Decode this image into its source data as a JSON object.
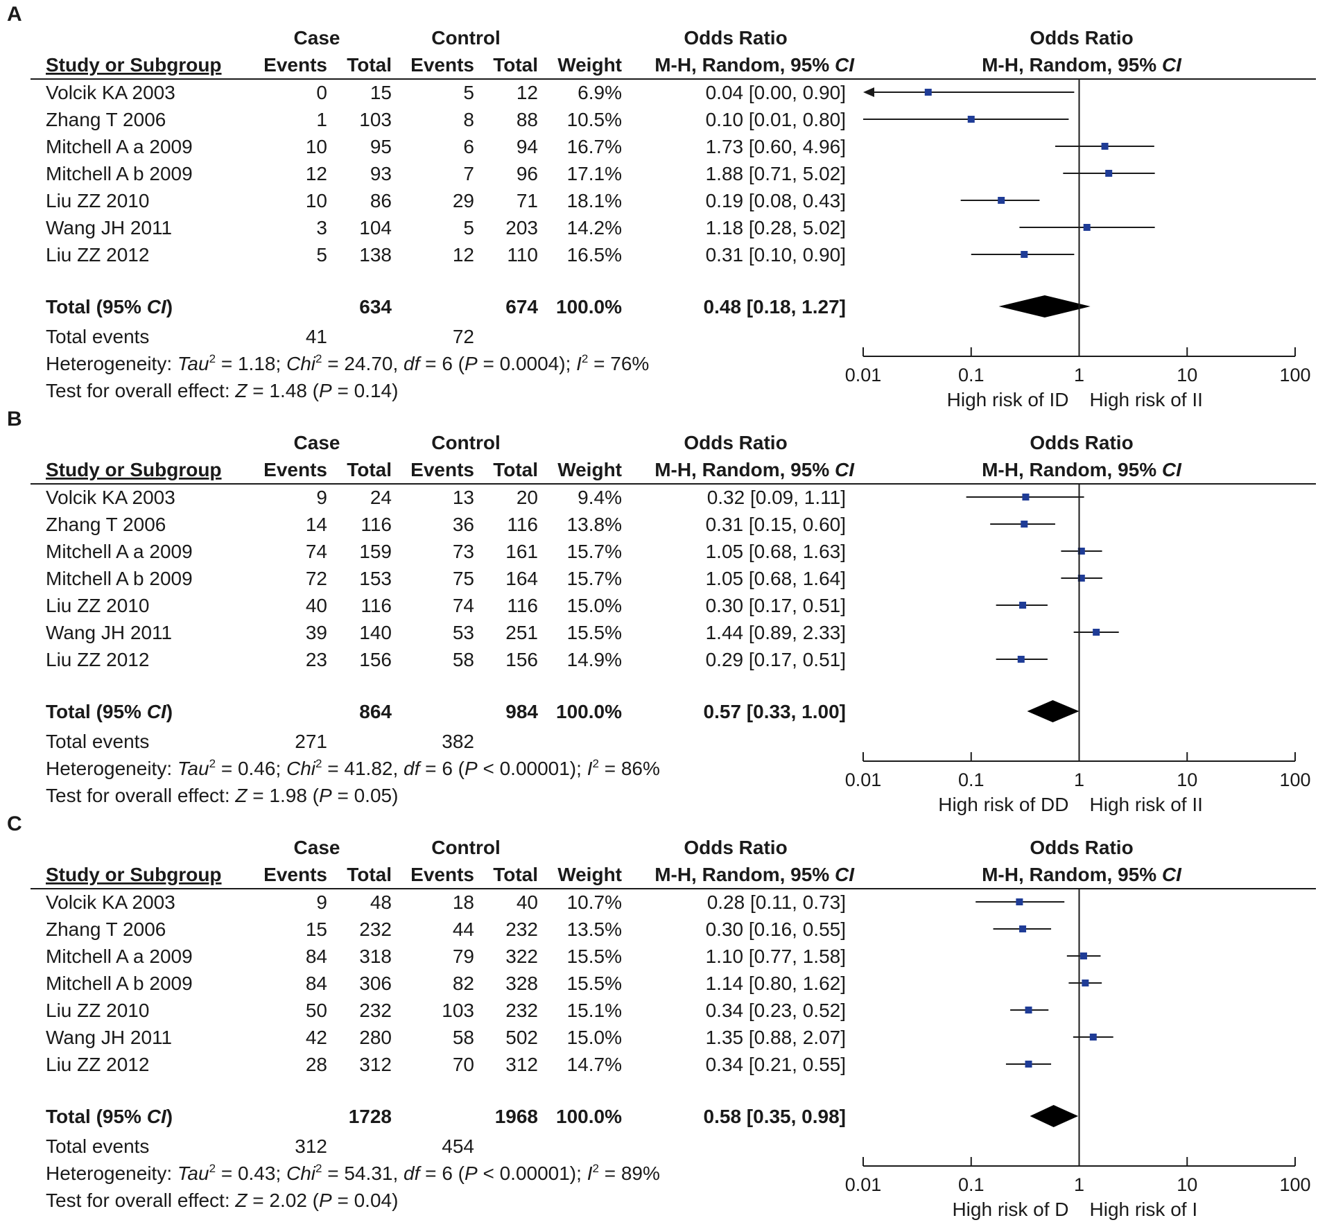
{
  "colors": {
    "marker": "#1f3c96",
    "line": "#1a1a1a",
    "diamond": "#000000"
  },
  "headers": {
    "case": "Case",
    "control": "Control",
    "odds_ratio": "Odds Ratio",
    "study": "Study or Subgroup",
    "events": "Events",
    "total": "Total",
    "weight": "Weight",
    "method_prefix": "M-H, Random, 95% ",
    "ci": "CI"
  },
  "chart_data": [
    {
      "type": "forest",
      "panel": "A",
      "axis": {
        "scale": "log",
        "ticks": [
          "0.01",
          "0.1",
          "1",
          "10",
          "100"
        ],
        "range": [
          0.01,
          100
        ],
        "left_label": "High risk of ID",
        "right_label": "High risk of II"
      },
      "studies": [
        {
          "name": "Volcik KA 2003",
          "case_events": "0",
          "case_total": "15",
          "ctrl_events": "5",
          "ctrl_total": "12",
          "weight": "6.9%",
          "or_text": "0.04 [0.00, 0.90]",
          "or": 0.04,
          "lo": 0.0,
          "hi": 0.9,
          "left_arrow": true
        },
        {
          "name": "Zhang T 2006",
          "case_events": "1",
          "case_total": "103",
          "ctrl_events": "8",
          "ctrl_total": "88",
          "weight": "10.5%",
          "or_text": "0.10 [0.01, 0.80]",
          "or": 0.1,
          "lo": 0.01,
          "hi": 0.8
        },
        {
          "name": "Mitchell A a 2009",
          "case_events": "10",
          "case_total": "95",
          "ctrl_events": "6",
          "ctrl_total": "94",
          "weight": "16.7%",
          "or_text": "1.73 [0.60, 4.96]",
          "or": 1.73,
          "lo": 0.6,
          "hi": 4.96
        },
        {
          "name": "Mitchell A b 2009",
          "case_events": "12",
          "case_total": "93",
          "ctrl_events": "7",
          "ctrl_total": "96",
          "weight": "17.1%",
          "or_text": "1.88 [0.71, 5.02]",
          "or": 1.88,
          "lo": 0.71,
          "hi": 5.02
        },
        {
          "name": "Liu ZZ 2010",
          "case_events": "10",
          "case_total": "86",
          "ctrl_events": "29",
          "ctrl_total": "71",
          "weight": "18.1%",
          "or_text": "0.19 [0.08, 0.43]",
          "or": 0.19,
          "lo": 0.08,
          "hi": 0.43
        },
        {
          "name": "Wang JH 2011",
          "case_events": "3",
          "case_total": "104",
          "ctrl_events": "5",
          "ctrl_total": "203",
          "weight": "14.2%",
          "or_text": "1.18 [0.28, 5.02]",
          "or": 1.18,
          "lo": 0.28,
          "hi": 5.02
        },
        {
          "name": "Liu ZZ 2012",
          "case_events": "5",
          "case_total": "138",
          "ctrl_events": "12",
          "ctrl_total": "110",
          "weight": "16.5%",
          "or_text": "0.31 [0.10, 0.90]",
          "or": 0.31,
          "lo": 0.1,
          "hi": 0.9
        }
      ],
      "total": {
        "label": "Total (95% ",
        "label_ci": "CI",
        "label_close": ")",
        "case_total": "634",
        "ctrl_total": "674",
        "weight": "100.0%",
        "or_text": "0.48 [0.18, 1.27]",
        "or": 0.48,
        "lo": 0.18,
        "hi": 1.27
      },
      "total_events": {
        "label": "Total events",
        "case": "41",
        "ctrl": "72"
      },
      "heterogeneity": {
        "label": "Heterogeneity: ",
        "tau_label": "Tau",
        "tau_val": " = 1.18; ",
        "chi_label": "Chi",
        "chi_val": " = 24.70, ",
        "df_label": "df",
        "df_val": " = 6 (",
        "p_label": "P",
        "p_val": " = 0.0004); ",
        "i_label": "I",
        "i_val": " = 76%"
      },
      "overall": {
        "label": "Test for overall effect: ",
        "z_label": "Z",
        "z_val": " = 1.48 (",
        "p_label": "P",
        "p_val": " = 0.14)"
      }
    },
    {
      "type": "forest",
      "panel": "B",
      "axis": {
        "scale": "log",
        "ticks": [
          "0.01",
          "0.1",
          "1",
          "10",
          "100"
        ],
        "range": [
          0.01,
          100
        ],
        "left_label": "High risk of DD",
        "right_label": "High risk of II"
      },
      "studies": [
        {
          "name": "Volcik KA 2003",
          "case_events": "9",
          "case_total": "24",
          "ctrl_events": "13",
          "ctrl_total": "20",
          "weight": "9.4%",
          "or_text": "0.32 [0.09, 1.11]",
          "or": 0.32,
          "lo": 0.09,
          "hi": 1.11
        },
        {
          "name": "Zhang T 2006",
          "case_events": "14",
          "case_total": "116",
          "ctrl_events": "36",
          "ctrl_total": "116",
          "weight": "13.8%",
          "or_text": "0.31 [0.15, 0.60]",
          "or": 0.31,
          "lo": 0.15,
          "hi": 0.6
        },
        {
          "name": "Mitchell A a 2009",
          "case_events": "74",
          "case_total": "159",
          "ctrl_events": "73",
          "ctrl_total": "161",
          "weight": "15.7%",
          "or_text": "1.05 [0.68, 1.63]",
          "or": 1.05,
          "lo": 0.68,
          "hi": 1.63
        },
        {
          "name": "Mitchell A b 2009",
          "case_events": "72",
          "case_total": "153",
          "ctrl_events": "75",
          "ctrl_total": "164",
          "weight": "15.7%",
          "or_text": "1.05 [0.68, 1.64]",
          "or": 1.05,
          "lo": 0.68,
          "hi": 1.64
        },
        {
          "name": "Liu ZZ 2010",
          "case_events": "40",
          "case_total": "116",
          "ctrl_events": "74",
          "ctrl_total": "116",
          "weight": "15.0%",
          "or_text": "0.30 [0.17, 0.51]",
          "or": 0.3,
          "lo": 0.17,
          "hi": 0.51
        },
        {
          "name": "Wang JH 2011",
          "case_events": "39",
          "case_total": "140",
          "ctrl_events": "53",
          "ctrl_total": "251",
          "weight": "15.5%",
          "or_text": "1.44 [0.89, 2.33]",
          "or": 1.44,
          "lo": 0.89,
          "hi": 2.33
        },
        {
          "name": "Liu ZZ 2012",
          "case_events": "23",
          "case_total": "156",
          "ctrl_events": "58",
          "ctrl_total": "156",
          "weight": "14.9%",
          "or_text": "0.29 [0.17, 0.51]",
          "or": 0.29,
          "lo": 0.17,
          "hi": 0.51
        }
      ],
      "total": {
        "label": "Total (95% ",
        "label_ci": "CI",
        "label_close": ")",
        "case_total": "864",
        "ctrl_total": "984",
        "weight": "100.0%",
        "or_text": "0.57 [0.33, 1.00]",
        "or": 0.57,
        "lo": 0.33,
        "hi": 1.0
      },
      "total_events": {
        "label": "Total events",
        "case": "271",
        "ctrl": "382"
      },
      "heterogeneity": {
        "label": "Heterogeneity: ",
        "tau_label": "Tau",
        "tau_val": " = 0.46; ",
        "chi_label": "Chi",
        "chi_val": " = 41.82, ",
        "df_label": "df",
        "df_val": " = 6 (",
        "p_label": "P",
        "p_val": " < 0.00001); ",
        "i_label": "I",
        "i_val": " = 86%"
      },
      "overall": {
        "label": "Test for overall effect: ",
        "z_label": "Z",
        "z_val": " = 1.98 (",
        "p_label": "P",
        "p_val": " = 0.05)"
      }
    },
    {
      "type": "forest",
      "panel": "C",
      "axis": {
        "scale": "log",
        "ticks": [
          "0.01",
          "0.1",
          "1",
          "10",
          "100"
        ],
        "range": [
          0.01,
          100
        ],
        "left_label": "High risk of D",
        "right_label": "High risk of I"
      },
      "studies": [
        {
          "name": "Volcik KA 2003",
          "case_events": "9",
          "case_total": "48",
          "ctrl_events": "18",
          "ctrl_total": "40",
          "weight": "10.7%",
          "or_text": "0.28 [0.11, 0.73]",
          "or": 0.28,
          "lo": 0.11,
          "hi": 0.73
        },
        {
          "name": "Zhang T 2006",
          "case_events": "15",
          "case_total": "232",
          "ctrl_events": "44",
          "ctrl_total": "232",
          "weight": "13.5%",
          "or_text": "0.30 [0.16, 0.55]",
          "or": 0.3,
          "lo": 0.16,
          "hi": 0.55
        },
        {
          "name": "Mitchell A a 2009",
          "case_events": "84",
          "case_total": "318",
          "ctrl_events": "79",
          "ctrl_total": "322",
          "weight": "15.5%",
          "or_text": "1.10 [0.77, 1.58]",
          "or": 1.1,
          "lo": 0.77,
          "hi": 1.58
        },
        {
          "name": "Mitchell A b 2009",
          "case_events": "84",
          "case_total": "306",
          "ctrl_events": "82",
          "ctrl_total": "328",
          "weight": "15.5%",
          "or_text": "1.14 [0.80, 1.62]",
          "or": 1.14,
          "lo": 0.8,
          "hi": 1.62
        },
        {
          "name": "Liu ZZ 2010",
          "case_events": "50",
          "case_total": "232",
          "ctrl_events": "103",
          "ctrl_total": "232",
          "weight": "15.1%",
          "or_text": "0.34 [0.23, 0.52]",
          "or": 0.34,
          "lo": 0.23,
          "hi": 0.52
        },
        {
          "name": "Wang JH 2011",
          "case_events": "42",
          "case_total": "280",
          "ctrl_events": "58",
          "ctrl_total": "502",
          "weight": "15.0%",
          "or_text": "1.35 [0.88, 2.07]",
          "or": 1.35,
          "lo": 0.88,
          "hi": 2.07
        },
        {
          "name": "Liu ZZ 2012",
          "case_events": "28",
          "case_total": "312",
          "ctrl_events": "70",
          "ctrl_total": "312",
          "weight": "14.7%",
          "or_text": "0.34 [0.21, 0.55]",
          "or": 0.34,
          "lo": 0.21,
          "hi": 0.55
        }
      ],
      "total": {
        "label": "Total (95% ",
        "label_ci": "CI",
        "label_close": ")",
        "case_total": "1728",
        "ctrl_total": "1968",
        "weight": "100.0%",
        "or_text": "0.58 [0.35, 0.98]",
        "or": 0.58,
        "lo": 0.35,
        "hi": 0.98
      },
      "total_events": {
        "label": "Total events",
        "case": "312",
        "ctrl": "454"
      },
      "heterogeneity": {
        "label": "Heterogeneity: ",
        "tau_label": "Tau",
        "tau_val": " = 0.43; ",
        "chi_label": "Chi",
        "chi_val": " = 54.31, ",
        "df_label": "df",
        "df_val": " = 6 (",
        "p_label": "P",
        "p_val": " < 0.00001); ",
        "i_label": "I",
        "i_val": " = 89%"
      },
      "overall": {
        "label": "Test for overall effect: ",
        "z_label": "Z",
        "z_val": " = 2.02 (",
        "p_label": "P",
        "p_val": " = 0.04)"
      }
    }
  ]
}
